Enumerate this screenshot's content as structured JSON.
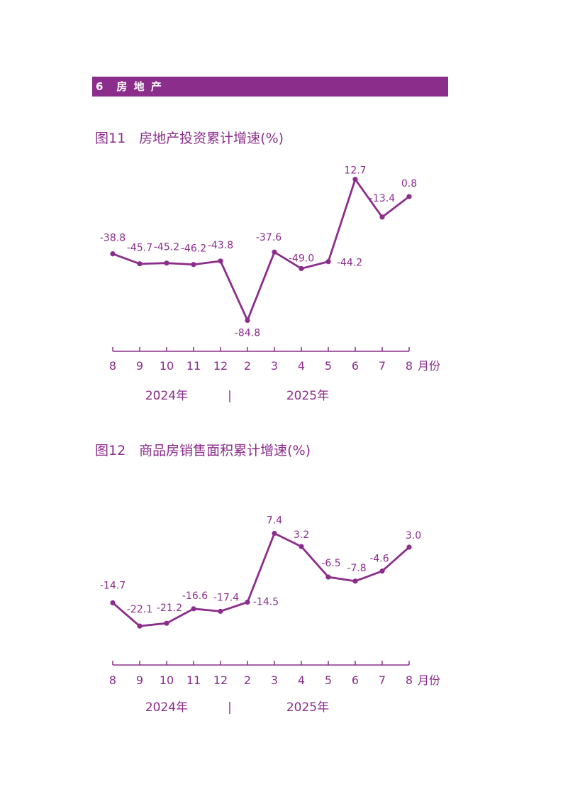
{
  "section": {
    "label": "6　房 地 产"
  },
  "colors": {
    "accent": "#8b2d8b",
    "background": "#ffffff"
  },
  "chart_data": [
    {
      "type": "line",
      "title": "图11　房地产投资累计增速(%)",
      "categories": [
        "8",
        "9",
        "10",
        "11",
        "12",
        "2",
        "3",
        "4",
        "5",
        "6",
        "7",
        "8"
      ],
      "values": [
        -38.8,
        -45.7,
        -45.2,
        -46.2,
        -43.8,
        -84.8,
        -37.6,
        -49.0,
        -44.2,
        12.7,
        -13.4,
        0.8
      ],
      "data_labels": [
        "-38.8",
        "-45.7",
        "-45.2",
        "-46.2",
        "-43.8",
        "-84.8",
        "-37.6",
        "-49.0",
        "-44.2",
        "12.7",
        "-13.4",
        "0.8"
      ],
      "xlabel": "月份",
      "years": [
        "2024年",
        "2025年"
      ],
      "year_separator": "|",
      "ylim": [
        -90,
        15
      ],
      "grid": false,
      "legend": "none"
    },
    {
      "type": "line",
      "title": "图12　商品房销售面积累计增速(%)",
      "categories": [
        "8",
        "9",
        "10",
        "11",
        "12",
        "2",
        "3",
        "4",
        "5",
        "6",
        "7",
        "8"
      ],
      "values": [
        -14.7,
        -22.1,
        -21.2,
        -16.6,
        -17.4,
        -14.5,
        7.4,
        3.2,
        -6.5,
        -7.8,
        -4.6,
        3.0
      ],
      "data_labels": [
        "-14.7",
        "-22.1",
        "-21.2",
        "-16.6",
        "-17.4",
        "-14.5",
        "7.4",
        "3.2",
        "-6.5",
        "-7.8",
        "-4.6",
        "3.0"
      ],
      "xlabel": "月份",
      "years": [
        "2024年",
        "2025年"
      ],
      "year_separator": "|",
      "ylim": [
        -25,
        10
      ],
      "grid": false,
      "legend": "none"
    }
  ]
}
